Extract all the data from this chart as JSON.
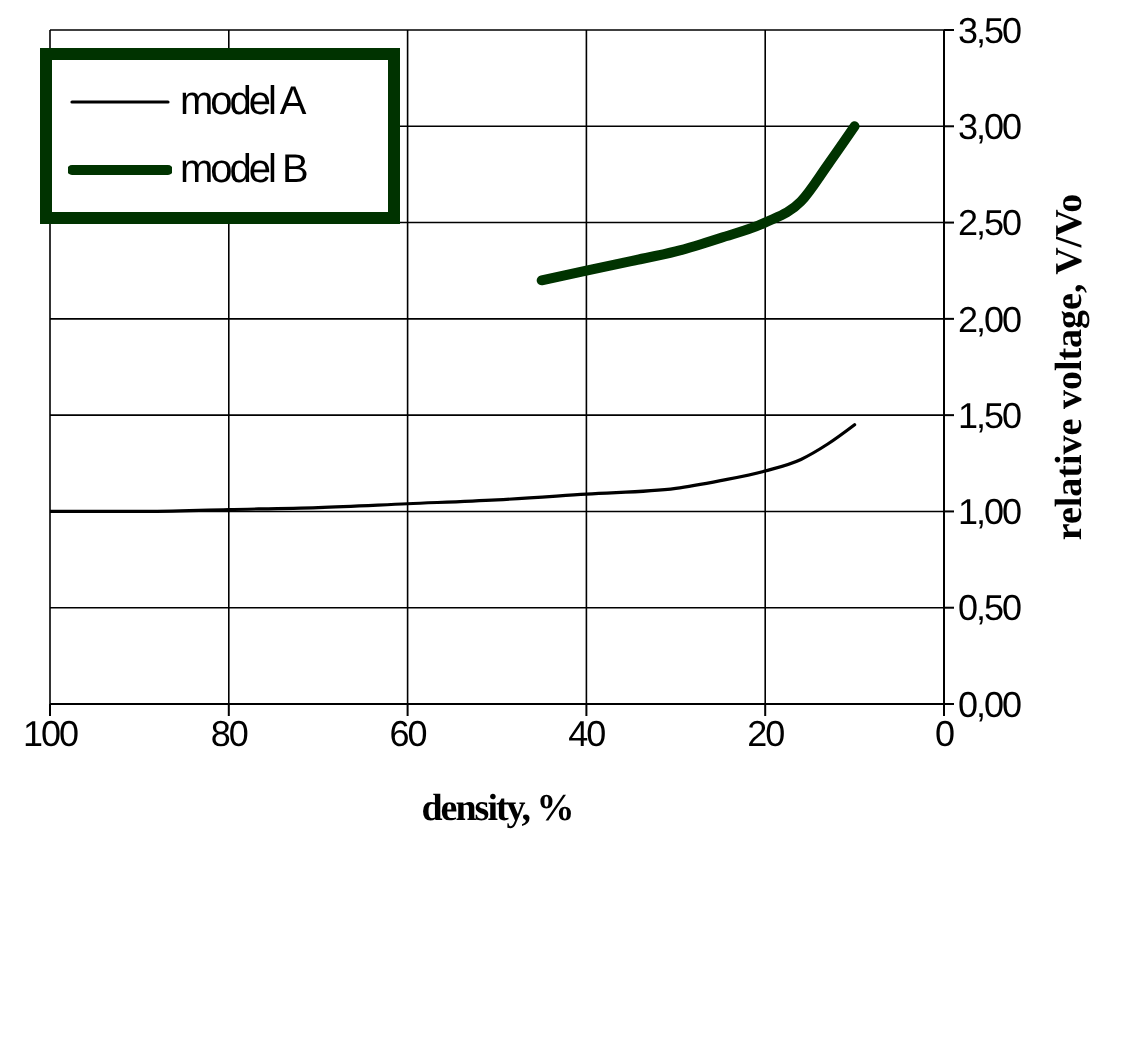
{
  "chart_data": {
    "type": "line",
    "xlabel": "density, %",
    "ylabel": "relative voltage, V/Vo",
    "xlim": [
      100,
      0
    ],
    "xticks": [
      100,
      80,
      60,
      40,
      20,
      0
    ],
    "ylim": [
      0,
      3.5
    ],
    "yticks": [
      {
        "value": 0,
        "label": "0,00"
      },
      {
        "value": 0.5,
        "label": "0,50"
      },
      {
        "value": 1,
        "label": "1,00"
      },
      {
        "value": 1.5,
        "label": "1,50"
      },
      {
        "value": 2,
        "label": "2,00"
      },
      {
        "value": 2.5,
        "label": "2,50"
      },
      {
        "value": 3,
        "label": "3,00"
      },
      {
        "value": 3.5,
        "label": "3,50"
      }
    ],
    "grid": true,
    "legend": "top left",
    "marker": "none",
    "line_style": "solid",
    "series": [
      {
        "name": "model A",
        "color": "#000000",
        "x": [
          100,
          90,
          80,
          70,
          60,
          50,
          40,
          30,
          25,
          20,
          16,
          13,
          10
        ],
        "values": [
          1.0,
          1.0,
          1.01,
          1.02,
          1.04,
          1.06,
          1.09,
          1.12,
          1.16,
          1.21,
          1.27,
          1.35,
          1.45
        ]
      },
      {
        "name": "model B",
        "color": "#003300",
        "x": [
          45,
          40,
          35,
          30,
          25,
          20,
          16,
          13,
          10
        ],
        "values": [
          2.2,
          2.25,
          2.3,
          2.35,
          2.42,
          2.5,
          2.61,
          2.8,
          3.0
        ]
      }
    ]
  }
}
